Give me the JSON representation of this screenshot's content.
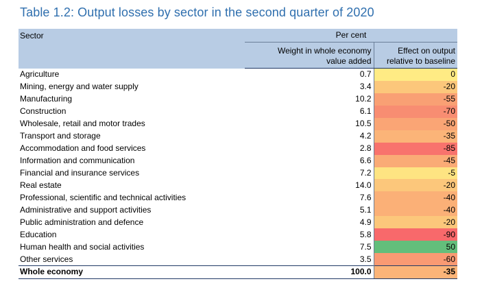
{
  "title": "Table 1.2: Output losses by sector in the second quarter of 2020",
  "header": {
    "unit": "Per cent",
    "sector": "Sector",
    "weight_line1": "Weight in whole economy",
    "weight_line2": "value added",
    "effect_line1": "Effect on output",
    "effect_line2": "relative to baseline"
  },
  "rows": [
    {
      "sector": "Agriculture",
      "weight": "0.7",
      "effect": "0",
      "color": "#ffeb84"
    },
    {
      "sector": "Mining, energy and water supply",
      "weight": "3.4",
      "effect": "-20",
      "color": "#fcc77b"
    },
    {
      "sector": "Manufacturing",
      "weight": "10.2",
      "effect": "-55",
      "color": "#f9a074"
    },
    {
      "sector": "Construction",
      "weight": "6.1",
      "effect": "-70",
      "color": "#f88d72"
    },
    {
      "sector": "Wholesale, retail and motor trades",
      "weight": "10.5",
      "effect": "-50",
      "color": "#faa575"
    },
    {
      "sector": "Transport and storage",
      "weight": "4.2",
      "effect": "-35",
      "color": "#fbb478"
    },
    {
      "sector": "Accommodation and food services",
      "weight": "2.8",
      "effect": "-85",
      "color": "#f8736d"
    },
    {
      "sector": "Information and communication",
      "weight": "6.6",
      "effect": "-45",
      "color": "#faab76"
    },
    {
      "sector": "Financial and insurance services",
      "weight": "7.2",
      "effect": "-5",
      "color": "#fee482"
    },
    {
      "sector": "Real estate",
      "weight": "14.0",
      "effect": "-20",
      "color": "#fcc77b"
    },
    {
      "sector": "Professional, scientific and technical activities",
      "weight": "7.6",
      "effect": "-40",
      "color": "#fbb077"
    },
    {
      "sector": "Administrative and support activities",
      "weight": "5.1",
      "effect": "-40",
      "color": "#fbb077"
    },
    {
      "sector": "Public administration and defence",
      "weight": "4.9",
      "effect": "-20",
      "color": "#fcc77b"
    },
    {
      "sector": "Education",
      "weight": "5.8",
      "effect": "-90",
      "color": "#f8696b"
    },
    {
      "sector": "Human health and social activities",
      "weight": "7.5",
      "effect": "50",
      "color": "#63be7b"
    },
    {
      "sector": "Other services",
      "weight": "3.5",
      "effect": "-60",
      "color": "#f99a73"
    }
  ],
  "total": {
    "sector": "Whole economy",
    "weight": "100.0",
    "effect": "-35",
    "color": "#fbb478"
  }
}
